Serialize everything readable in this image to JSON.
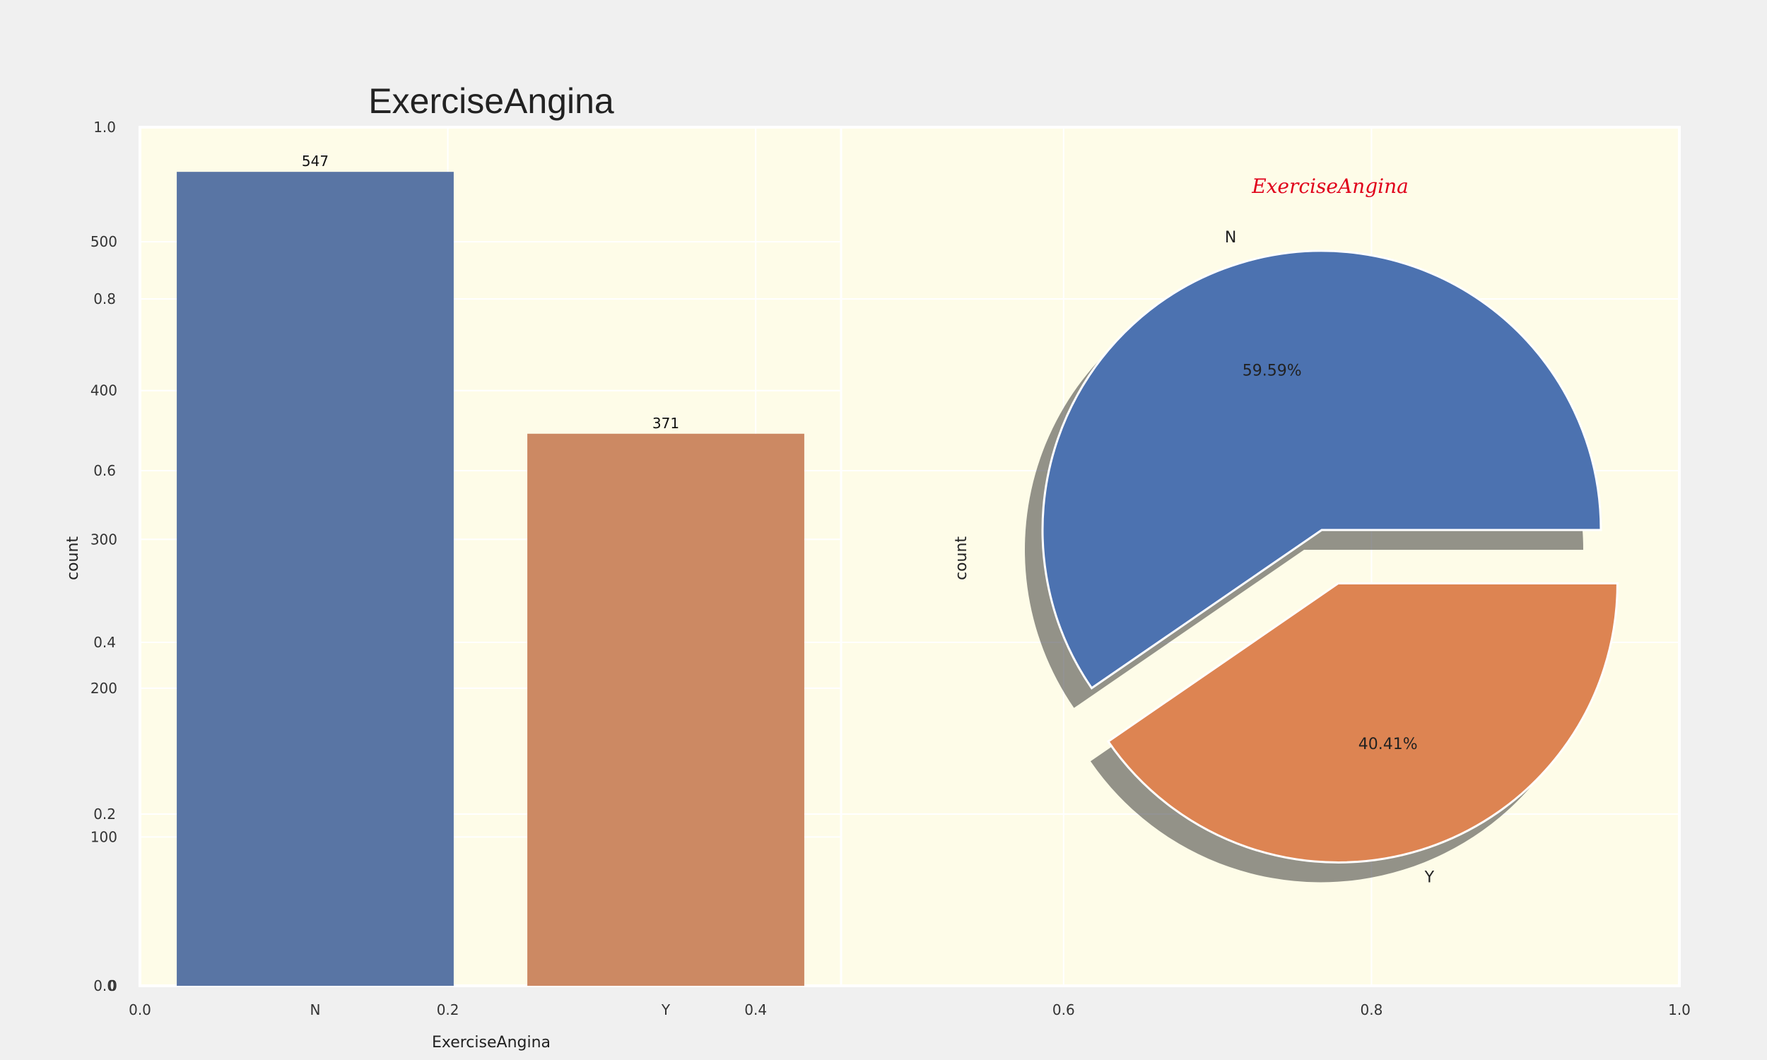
{
  "figure": {
    "background": "#f0f0f0",
    "plot_background": "#fefce8",
    "outer_axes": {
      "x_ticks": [
        "0.0",
        "0.2",
        "0.4",
        "0.6",
        "0.8",
        "1.0"
      ],
      "y_ticks": [
        "0.0",
        "0.2",
        "0.4",
        "0.6",
        "0.8",
        "1.0"
      ]
    }
  },
  "chart_data": [
    {
      "type": "bar",
      "title": "ExerciseAngina",
      "xlabel": "ExerciseAngina",
      "ylabel": "count",
      "categories": [
        "N",
        "Y"
      ],
      "values": [
        547,
        371
      ],
      "data_labels": [
        "547",
        "371"
      ],
      "colors": [
        "#5975a4",
        "#cc8963"
      ],
      "ylim": [
        0,
        577
      ],
      "y_ticks": [
        "0",
        "100",
        "200",
        "300",
        "400",
        "500"
      ],
      "grid": true
    },
    {
      "type": "pie",
      "title": "ExerciseAngina",
      "ylabel": "count",
      "labels": [
        "N",
        "Y"
      ],
      "values": [
        547,
        371
      ],
      "percent_labels": [
        "59.59%",
        "40.41%"
      ],
      "colors": [
        "#4c72b0",
        "#dd8452"
      ],
      "explode": [
        0,
        0.2
      ],
      "shadow": true,
      "title_color": "#e0001a"
    }
  ]
}
